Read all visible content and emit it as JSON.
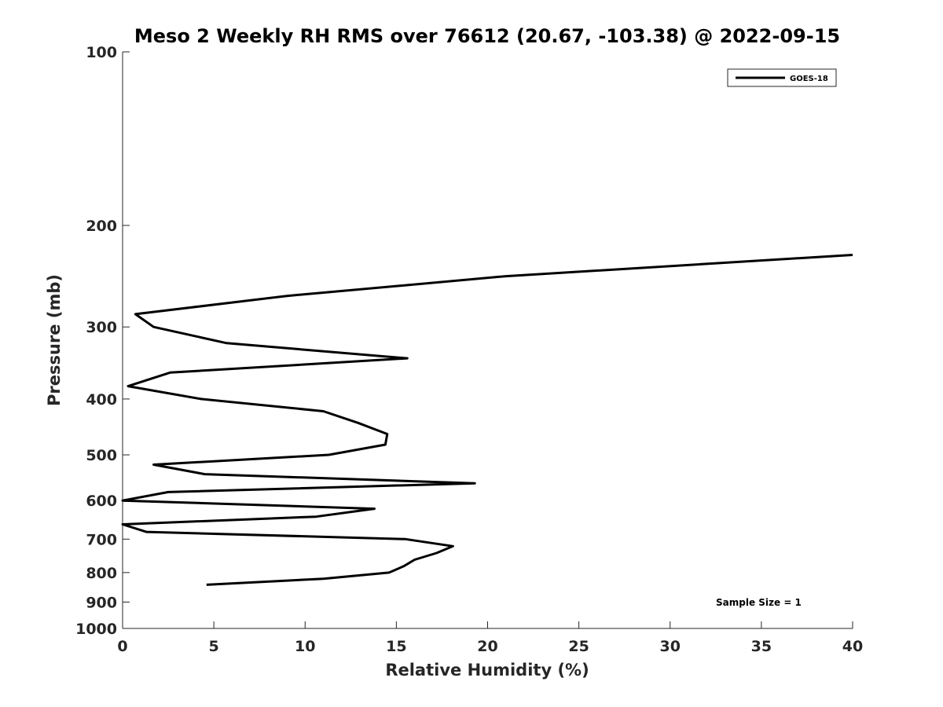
{
  "chart_data": {
    "type": "line",
    "title": "Meso 2 Weekly RH RMS over 76612 (20.67, -103.38) @ 2022-09-15",
    "xlabel": "Relative Humidity (%)",
    "ylabel": "Pressure (mb)",
    "xlim": [
      0,
      40
    ],
    "ylim": [
      100,
      1000
    ],
    "y_scale": "log",
    "y_reversed": true,
    "x_ticks": [
      0,
      5,
      10,
      15,
      20,
      25,
      30,
      35,
      40
    ],
    "y_ticks": [
      100,
      200,
      300,
      400,
      500,
      600,
      700,
      800,
      900,
      1000
    ],
    "grid": false,
    "legend_position": "top-right",
    "annotation": "Sample Size = 1",
    "color": "#000000",
    "series": [
      {
        "name": "GOES-18",
        "points": [
          {
            "x": 40.0,
            "y": 225
          },
          {
            "x": 21.0,
            "y": 245
          },
          {
            "x": 9.0,
            "y": 265
          },
          {
            "x": 0.7,
            "y": 285
          },
          {
            "x": 1.7,
            "y": 300
          },
          {
            "x": 5.7,
            "y": 320
          },
          {
            "x": 15.6,
            "y": 340
          },
          {
            "x": 2.6,
            "y": 360
          },
          {
            "x": 0.3,
            "y": 380
          },
          {
            "x": 4.3,
            "y": 400
          },
          {
            "x": 11.0,
            "y": 420
          },
          {
            "x": 12.9,
            "y": 440
          },
          {
            "x": 14.5,
            "y": 460
          },
          {
            "x": 14.4,
            "y": 480
          },
          {
            "x": 11.3,
            "y": 500
          },
          {
            "x": 1.7,
            "y": 520
          },
          {
            "x": 4.5,
            "y": 540
          },
          {
            "x": 19.3,
            "y": 560
          },
          {
            "x": 2.5,
            "y": 580
          },
          {
            "x": 0.0,
            "y": 600
          },
          {
            "x": 13.8,
            "y": 620
          },
          {
            "x": 10.6,
            "y": 640
          },
          {
            "x": 0.0,
            "y": 660
          },
          {
            "x": 1.3,
            "y": 680
          },
          {
            "x": 15.5,
            "y": 700
          },
          {
            "x": 18.1,
            "y": 720
          },
          {
            "x": 17.2,
            "y": 740
          },
          {
            "x": 16.0,
            "y": 760
          },
          {
            "x": 15.4,
            "y": 780
          },
          {
            "x": 14.6,
            "y": 800
          },
          {
            "x": 11.0,
            "y": 820
          },
          {
            "x": 4.6,
            "y": 840
          }
        ]
      }
    ]
  }
}
